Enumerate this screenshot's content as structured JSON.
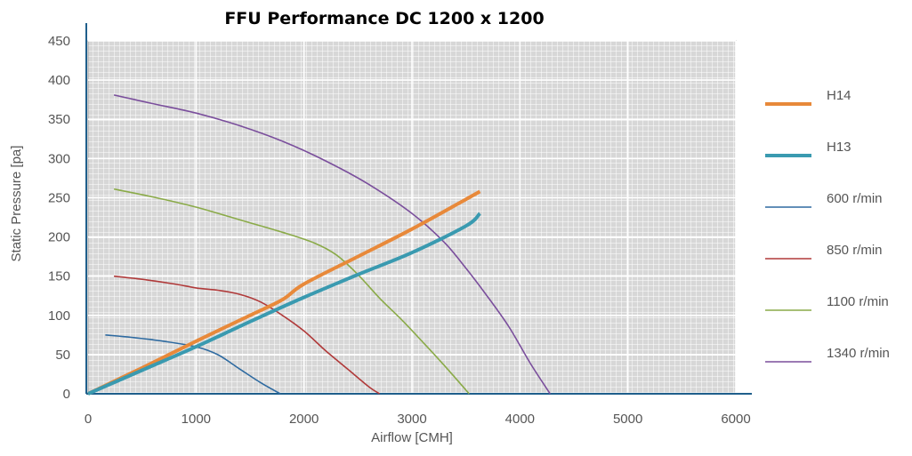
{
  "chart_data": {
    "type": "line",
    "title": "FFU Performance  DC 1200 x 1200",
    "xlabel": "Airflow [CMH]",
    "ylabel": "Static Pressure [pa]",
    "xlim": [
      0,
      6000
    ],
    "ylim": [
      0,
      450
    ],
    "xticks": [
      0,
      1000,
      2000,
      3000,
      4000,
      5000,
      6000
    ],
    "yticks": [
      0,
      50,
      100,
      150,
      200,
      250,
      300,
      350,
      400,
      450
    ],
    "grid": true,
    "legend_position": "right",
    "series": [
      {
        "name": "H14",
        "color": "#E8893A",
        "width": "thick",
        "x": [
          0,
          500,
          1000,
          1500,
          1800,
          2000,
          2500,
          3000,
          3500,
          3630
        ],
        "y": [
          0,
          33,
          67,
          100,
          120,
          140,
          175,
          210,
          248,
          258
        ]
      },
      {
        "name": "H13",
        "color": "#3A9AB0",
        "width": "thick",
        "x": [
          0,
          500,
          1000,
          1500,
          2000,
          2500,
          3000,
          3500,
          3630
        ],
        "y": [
          0,
          30,
          60,
          92,
          123,
          152,
          180,
          214,
          230
        ]
      },
      {
        "name": "600 r/min",
        "color": "#2E6AA0",
        "width": "thin",
        "x": [
          160,
          400,
          700,
          1000,
          1200,
          1400,
          1600,
          1780
        ],
        "y": [
          75,
          72,
          67,
          60,
          50,
          32,
          14,
          0
        ]
      },
      {
        "name": "850 r/min",
        "color": "#B03A3A",
        "width": "thin",
        "x": [
          240,
          500,
          800,
          1000,
          1200,
          1400,
          1600,
          1800,
          2000,
          2200,
          2400,
          2600,
          2700
        ],
        "y": [
          150,
          146,
          140,
          135,
          132,
          127,
          117,
          100,
          80,
          55,
          32,
          9,
          0
        ]
      },
      {
        "name": "1100 r/min",
        "color": "#8AAA48",
        "width": "thin",
        "x": [
          240,
          600,
          1000,
          1400,
          1800,
          2100,
          2300,
          2500,
          2700,
          2900,
          3100,
          3300,
          3530
        ],
        "y": [
          261,
          251,
          238,
          222,
          206,
          192,
          177,
          152,
          122,
          95,
          66,
          36,
          0
        ]
      },
      {
        "name": "1340 r/min",
        "color": "#7A4E9C",
        "width": "thin",
        "x": [
          240,
          600,
          1000,
          1400,
          1800,
          2200,
          2600,
          3000,
          3300,
          3500,
          3700,
          3900,
          4100,
          4280
        ],
        "y": [
          381,
          370,
          358,
          342,
          322,
          297,
          267,
          230,
          193,
          160,
          124,
          85,
          38,
          0
        ]
      }
    ]
  }
}
